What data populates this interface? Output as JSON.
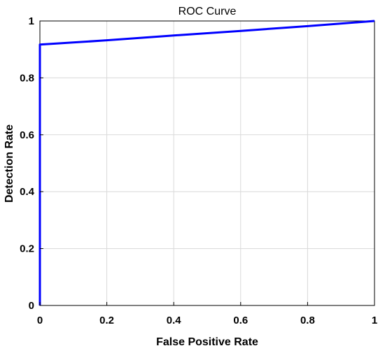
{
  "chart_data": {
    "type": "line",
    "title": "ROC Curve",
    "xlabel": "False Positive Rate",
    "ylabel": "Detection Rate",
    "xlim": [
      0,
      1
    ],
    "ylim": [
      0,
      1
    ],
    "xticks": [
      0,
      0.2,
      0.4,
      0.6,
      0.8,
      1
    ],
    "yticks": [
      0,
      0.2,
      0.4,
      0.6,
      0.8,
      1
    ],
    "xtick_labels": [
      "0",
      "0.2",
      "0.4",
      "0.6",
      "0.8",
      "1"
    ],
    "ytick_labels": [
      "0",
      "0.2",
      "0.4",
      "0.6",
      "0.8",
      "1"
    ],
    "grid": true,
    "series": [
      {
        "color": "#0000ff",
        "x": [
          0,
          0,
          0.2,
          0.4,
          0.6,
          0.8,
          1
        ],
        "y": [
          0,
          0.917,
          0.932,
          0.949,
          0.965,
          0.982,
          1
        ]
      }
    ]
  }
}
